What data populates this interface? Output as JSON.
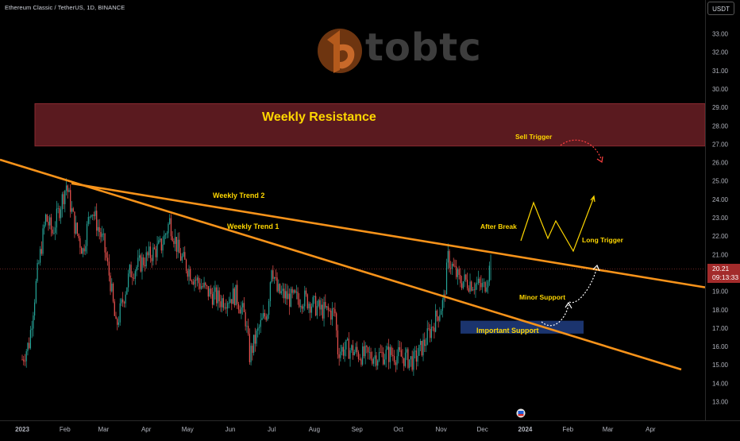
{
  "header": {
    "symbol": "Ethereum Classic / TetherUS, 1D, BINANCE",
    "currency": "USDT"
  },
  "watermark": {
    "text": "tobtc"
  },
  "last_price": {
    "value": "20.21",
    "countdown": "09:13:33"
  },
  "colors": {
    "bull": "#26a69a",
    "bear": "#ef5350",
    "trendline": "#f7931a",
    "resistance_zone": "#5a1a1f",
    "support_zone": "#1e3a7a",
    "annotation_text": "#ffd700",
    "price_tag": "#a32b2b"
  },
  "chart_data": {
    "type": "candlestick",
    "y_axis": {
      "ticks": [
        "13.00",
        "14.00",
        "15.00",
        "16.00",
        "17.00",
        "18.00",
        "19.00",
        "20.00",
        "21.00",
        "22.00",
        "23.00",
        "24.00",
        "25.00",
        "26.00",
        "27.00",
        "28.00",
        "29.00",
        "30.00",
        "31.00",
        "32.00",
        "33.00"
      ],
      "range": [
        12.5,
        34
      ]
    },
    "x_axis": {
      "ticks": [
        "2023",
        "Feb",
        "Mar",
        "Apr",
        "May",
        "Jun",
        "Jul",
        "Aug",
        "Sep",
        "Oct",
        "Nov",
        "Dec",
        "2024",
        "Feb",
        "Mar",
        "Apr"
      ]
    },
    "price_anchors": [
      [
        "2023-01-01",
        15.3
      ],
      [
        "2023-01-06",
        16.2
      ],
      [
        "2023-01-12",
        20.0
      ],
      [
        "2023-01-18",
        23.0
      ],
      [
        "2023-01-23",
        22.2
      ],
      [
        "2023-02-02",
        24.8
      ],
      [
        "2023-02-08",
        22.6
      ],
      [
        "2023-02-14",
        21.2
      ],
      [
        "2023-02-20",
        23.6
      ],
      [
        "2023-03-01",
        21.6
      ],
      [
        "2023-03-06",
        19.5
      ],
      [
        "2023-03-10",
        17.0
      ],
      [
        "2023-03-20",
        20.0
      ],
      [
        "2023-04-01",
        20.8
      ],
      [
        "2023-04-12",
        21.5
      ],
      [
        "2023-04-18",
        22.8
      ],
      [
        "2023-04-25",
        21.0
      ],
      [
        "2023-05-05",
        19.8
      ],
      [
        "2023-05-15",
        19.0
      ],
      [
        "2023-05-25",
        18.5
      ],
      [
        "2023-06-05",
        18.8
      ],
      [
        "2023-06-12",
        17.5
      ],
      [
        "2023-06-15",
        15.5
      ],
      [
        "2023-06-22",
        17.0
      ],
      [
        "2023-06-28",
        18.0
      ],
      [
        "2023-07-01",
        20.5
      ],
      [
        "2023-07-05",
        19.0
      ],
      [
        "2023-07-14",
        18.6
      ],
      [
        "2023-07-25",
        18.6
      ],
      [
        "2023-08-05",
        18.0
      ],
      [
        "2023-08-16",
        17.8
      ],
      [
        "2023-08-18",
        15.8
      ],
      [
        "2023-08-25",
        15.9
      ],
      [
        "2023-09-05",
        15.5
      ],
      [
        "2023-09-15",
        15.5
      ],
      [
        "2023-09-25",
        15.6
      ],
      [
        "2023-10-05",
        15.4
      ],
      [
        "2023-10-12",
        15.2
      ],
      [
        "2023-10-20",
        16.2
      ],
      [
        "2023-10-28",
        17.5
      ],
      [
        "2023-11-03",
        18.5
      ],
      [
        "2023-11-06",
        20.8
      ],
      [
        "2023-11-14",
        19.6
      ],
      [
        "2023-11-22",
        19.5
      ],
      [
        "2023-12-02",
        19.2
      ],
      [
        "2023-12-06",
        20.21
      ]
    ],
    "last_close": 20.21,
    "trendlines": [
      {
        "name": "Weekly Trend 2",
        "points": [
          [
            "2023-02-03",
            24.9
          ],
          [
            "2023-12-01",
            21.2
          ]
        ]
      },
      {
        "name": "Weekly Trend 1",
        "points": [
          [
            "2023-02-03",
            24.9
          ],
          [
            "2023-07-01",
            21.3
          ]
        ]
      }
    ],
    "zones": [
      {
        "name": "Weekly Resistance",
        "y_range": [
          26.9,
          29.2
        ]
      },
      {
        "name": "Important Support",
        "y_range": [
          16.7,
          17.4
        ]
      }
    ],
    "annotations": [
      "Sell Trigger",
      "After Break",
      "Long Trigger",
      "Minor Support"
    ]
  }
}
